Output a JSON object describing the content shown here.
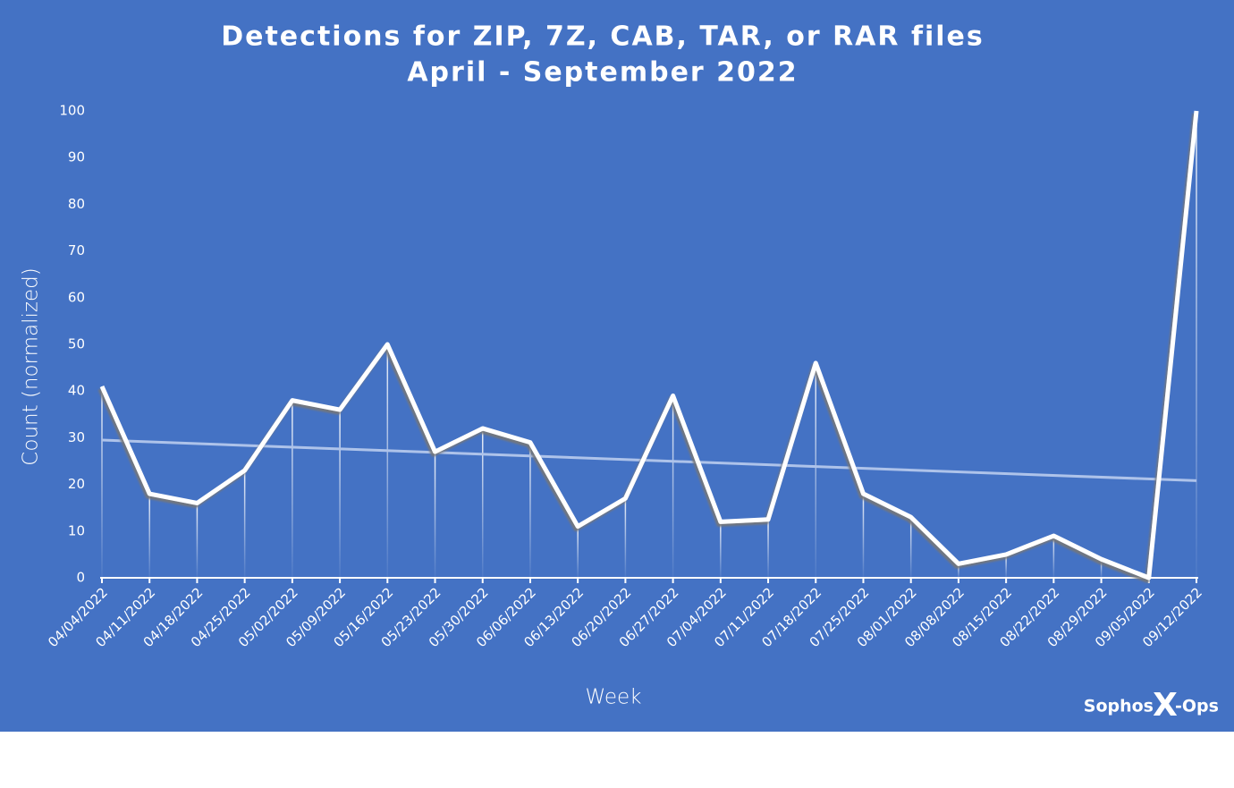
{
  "chart_data": {
    "type": "line",
    "title": "Detections for ZIP, 7Z, CAB, TAR, or RAR files",
    "subtitle": "April - September 2022",
    "ylabel": "Count (normalized)",
    "xlabel": "Week",
    "categories": [
      "04/04/2022",
      "04/11/2022",
      "04/18/2022",
      "04/25/2022",
      "05/02/2022",
      "05/09/2022",
      "05/16/2022",
      "05/23/2022",
      "05/30/2022",
      "06/06/2022",
      "06/13/2022",
      "06/20/2022",
      "06/27/2022",
      "07/04/2022",
      "07/11/2022",
      "07/18/2022",
      "07/25/2022",
      "08/01/2022",
      "08/08/2022",
      "08/15/2022",
      "08/22/2022",
      "08/29/2022",
      "09/05/2022",
      "09/12/2022"
    ],
    "values": [
      41,
      18,
      16,
      23,
      38,
      36,
      50,
      27,
      32,
      29,
      11,
      17,
      39,
      12,
      12.5,
      46,
      18,
      13,
      3,
      5,
      9,
      4,
      0,
      100
    ],
    "color": "#ffffff",
    "trend": [
      29.5,
      20.8
    ],
    "trend_color": "#aec3ea",
    "ylim": [
      0,
      100
    ],
    "yticks": [
      0,
      10,
      20,
      30,
      40,
      50,
      60,
      70,
      80,
      90,
      100
    ],
    "logo": [
      "Sophos",
      "X",
      "-Ops"
    ]
  }
}
